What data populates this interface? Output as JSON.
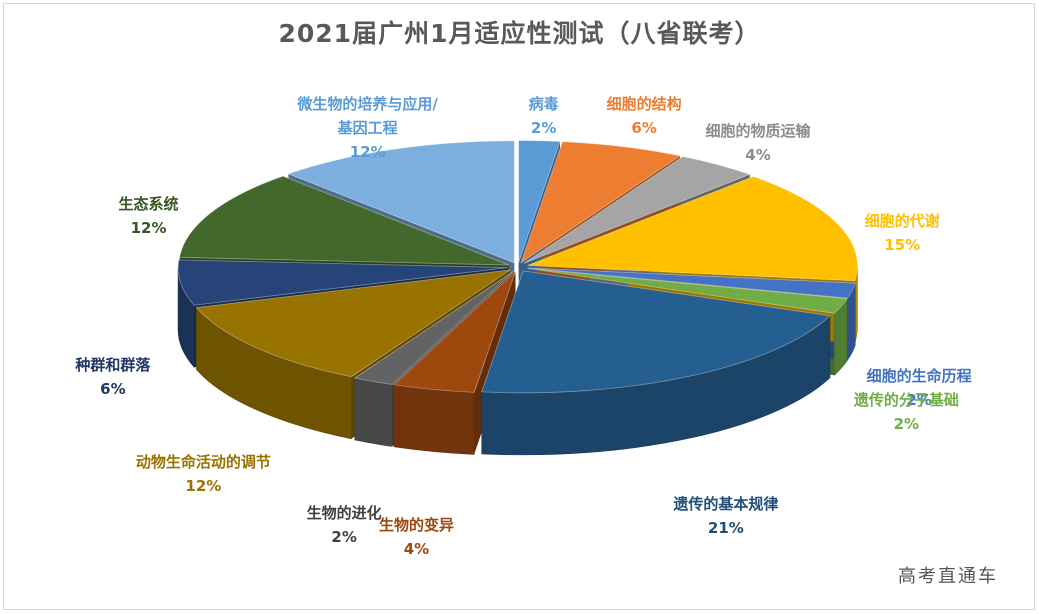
{
  "title": "2021届广州1月适应性测试（八省联考）",
  "watermark": "高考直通车",
  "chart_data": {
    "type": "pie",
    "title": "2021届广州1月适应性测试（八省联考）",
    "categories": [
      "病毒",
      "细胞的结构",
      "细胞的物质运输",
      "细胞的代谢",
      "细胞的生命历程",
      "遗传的分子基础",
      "遗传的基本规律",
      "生物的变异",
      "生物的进化",
      "动物生命活动的调节",
      "种群和群落",
      "生态系统",
      "微生物的培养与应用/基因工程"
    ],
    "values": [
      2,
      6,
      4,
      15,
      2,
      2,
      21,
      4,
      2,
      12,
      6,
      12,
      12
    ],
    "percent_labels": [
      "2%",
      "6%",
      "4%",
      "15%",
      "2%",
      "2%",
      "21%",
      "4%",
      "2%",
      "12%",
      "6%",
      "12%",
      "12%"
    ],
    "label_lines": [
      [
        "病毒"
      ],
      [
        "细胞的结构"
      ],
      [
        "细胞的物质运输"
      ],
      [
        "细胞的代谢"
      ],
      [
        "细胞的生命历程"
      ],
      [
        "遗传的分子基础"
      ],
      [
        "遗传的基本规律"
      ],
      [
        "生物的变异"
      ],
      [
        "生物的进化"
      ],
      [
        "动物生命活动的调节"
      ],
      [
        "种群和群落"
      ],
      [
        "生态系统"
      ],
      [
        "微生物的培养与应用/",
        "基因工程"
      ]
    ],
    "colors": [
      "#5b9bd5",
      "#ed7d31",
      "#a5a5a5",
      "#ffc000",
      "#4472c4",
      "#70ad47",
      "#255e91",
      "#9e480e",
      "#636363",
      "#997300",
      "#264478",
      "#43682b",
      "#7cafdd"
    ],
    "label_colors": [
      "#5b9bd5",
      "#ed7d31",
      "#8c8c8c",
      "#ffc000",
      "#4472c4",
      "#70ad47",
      "#1f4e79",
      "#9e480e",
      "#404040",
      "#997300",
      "#1f3864",
      "#375623",
      "#5b9bd5"
    ],
    "style": "3d-exploded-pie",
    "legend": "none"
  }
}
